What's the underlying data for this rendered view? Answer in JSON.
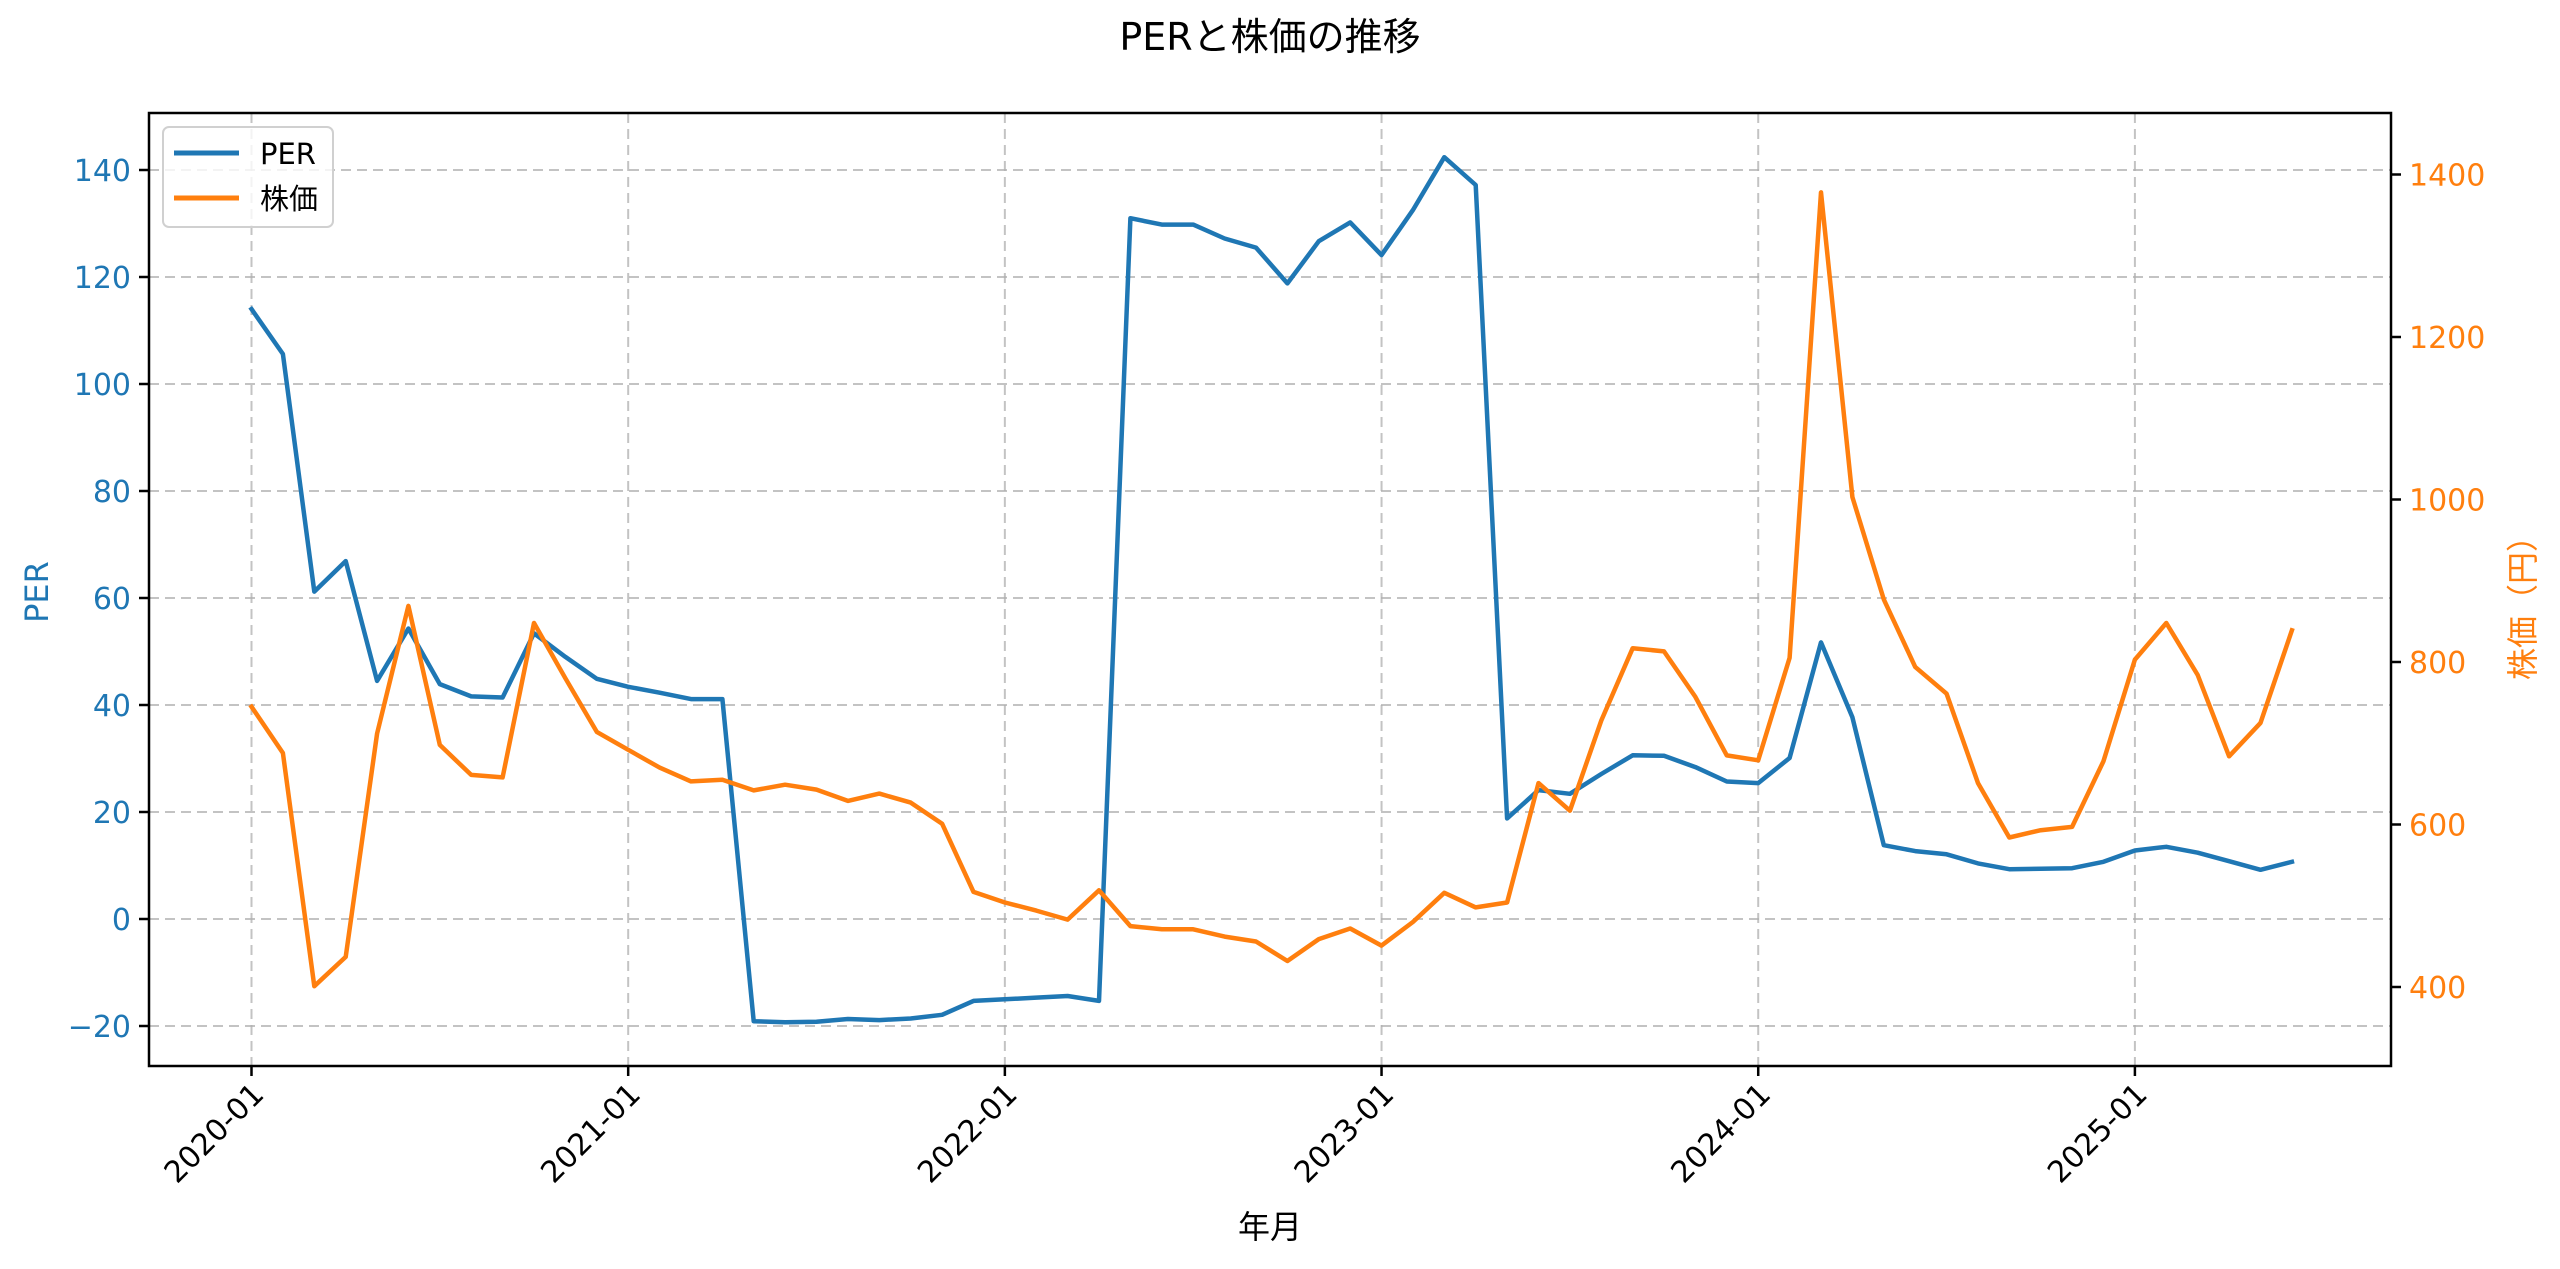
{
  "chart_data": {
    "type": "line",
    "title": "PERと株価の推移",
    "xlabel": "年月",
    "ylabel": "PER",
    "ylabel_right": "株価（円）",
    "x_tick_labels": [
      "2020-01",
      "2021-01",
      "2022-01",
      "2023-01",
      "2024-01",
      "2025-01"
    ],
    "y_ticks_left": [
      -20,
      0,
      20,
      40,
      60,
      80,
      100,
      120,
      140
    ],
    "y_ticks_right": [
      400,
      600,
      800,
      1000,
      1200,
      1400
    ],
    "ylim_left": [
      -27.5,
      150
    ],
    "ylim_right": [
      305,
      1470
    ],
    "grid": true,
    "legend_position": "upper left",
    "x": [
      "2020-01",
      "2020-02",
      "2020-03",
      "2020-04",
      "2020-05",
      "2020-06",
      "2020-07",
      "2020-08",
      "2020-09",
      "2020-10",
      "2020-11",
      "2020-12",
      "2021-01",
      "2021-02",
      "2021-03",
      "2021-04",
      "2021-05",
      "2021-06",
      "2021-07",
      "2021-08",
      "2021-09",
      "2021-10",
      "2021-11",
      "2021-12",
      "2022-01",
      "2022-02",
      "2022-03",
      "2022-04",
      "2022-05",
      "2022-06",
      "2022-07",
      "2022-08",
      "2022-09",
      "2022-10",
      "2022-11",
      "2022-12",
      "2023-01",
      "2023-02",
      "2023-03",
      "2023-04",
      "2023-05",
      "2023-06",
      "2023-07",
      "2023-08",
      "2023-09",
      "2023-10",
      "2023-11",
      "2023-12",
      "2024-01",
      "2024-02",
      "2024-03",
      "2024-04",
      "2024-05",
      "2024-06",
      "2024-07",
      "2024-08",
      "2024-09",
      "2024-10",
      "2024-11",
      "2024-12",
      "2025-01",
      "2025-02",
      "2025-03",
      "2025-04",
      "2025-05",
      "2025-06"
    ],
    "series": [
      {
        "name": "PER",
        "axis": "left",
        "color": "#1f77b4",
        "values": [
          114.0,
          105.6,
          61.2,
          66.9,
          44.5,
          54.3,
          43.9,
          41.6,
          41.4,
          53.4,
          49.0,
          44.9,
          43.4,
          42.3,
          41.1,
          41.1,
          -19.1,
          -19.3,
          -19.2,
          -18.7,
          -18.9,
          -18.6,
          -17.9,
          -15.3,
          -15.0,
          -14.7,
          -14.4,
          -15.3,
          131.0,
          129.8,
          129.8,
          127.2,
          125.5,
          118.8,
          126.7,
          130.2,
          124.1,
          132.5,
          142.4,
          137.2,
          18.8,
          24.1,
          23.4,
          27.1,
          30.6,
          30.5,
          28.4,
          25.7,
          25.4,
          30.1,
          51.7,
          37.7,
          13.8,
          12.7,
          12.1,
          10.4,
          9.3,
          9.4,
          9.5,
          10.7,
          12.8,
          13.5,
          12.4,
          10.8,
          9.2,
          10.7
        ]
      },
      {
        "name": "株価",
        "axis": "right",
        "color": "#ff7f0e",
        "values": [
          745,
          688,
          401,
          437,
          712,
          869,
          698,
          661,
          658,
          848,
          780,
          714,
          692,
          670,
          653,
          655,
          642,
          649,
          643,
          629,
          638,
          627,
          601,
          517,
          504,
          494,
          483,
          519,
          475,
          471,
          471,
          462,
          456,
          432,
          459,
          472,
          451,
          480,
          516,
          498,
          504,
          651,
          617,
          728,
          817,
          813,
          757,
          685,
          679,
          805,
          1378,
          1003,
          877,
          794,
          761,
          651,
          584,
          593,
          597,
          678,
          803,
          848,
          784,
          684,
          725,
          839
        ]
      }
    ]
  },
  "colors": {
    "per": "#1f77b4",
    "price": "#ff7f0e",
    "grid": "#b0b0b0",
    "axis": "#000000"
  },
  "legend": {
    "items": [
      {
        "label": "PER",
        "color": "#1f77b4"
      },
      {
        "label": "株価",
        "color": "#ff7f0e"
      }
    ]
  }
}
